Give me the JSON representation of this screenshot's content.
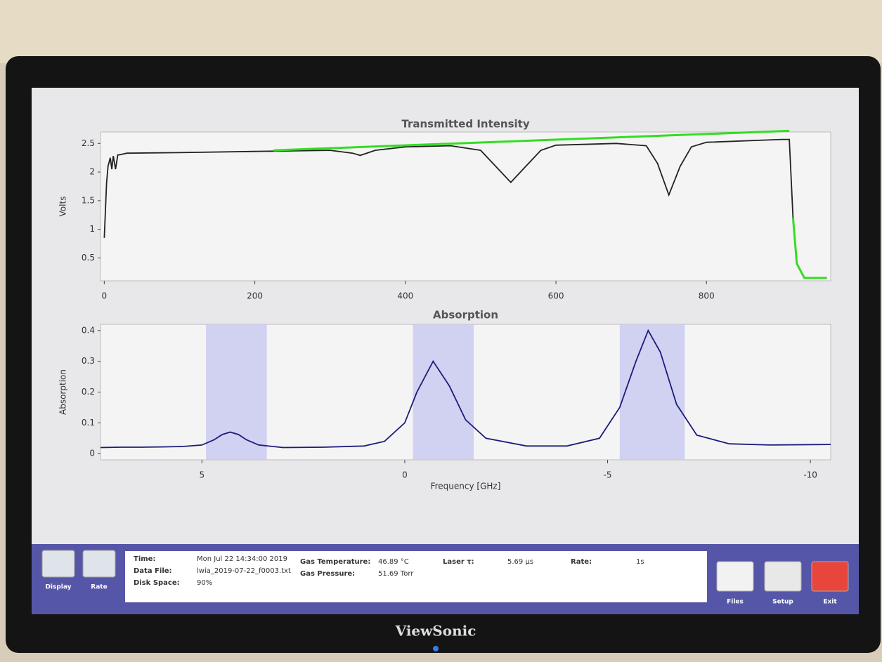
{
  "chart_data": [
    {
      "type": "line",
      "title": "Transmitted Intensity",
      "y_label": "Volts",
      "xlim": [
        -5,
        965
      ],
      "xticks": [
        0,
        200,
        400,
        600,
        800
      ],
      "ylim": [
        0.1,
        2.7
      ],
      "yticks": [
        0.5,
        1,
        1.5,
        2,
        2.5
      ],
      "series": [
        {
          "color": "#222222",
          "x": [
            0,
            3,
            5,
            8,
            10,
            12,
            15,
            18,
            20,
            30,
            100,
            200,
            300,
            330,
            340,
            360,
            400,
            460,
            500,
            520,
            540,
            560,
            580,
            600,
            680,
            720,
            735,
            750,
            765,
            780,
            800,
            900,
            910,
            915,
            920,
            930,
            960
          ],
          "values": [
            0.85,
            1.8,
            2.1,
            2.25,
            2.05,
            2.28,
            2.05,
            2.3,
            2.3,
            2.33,
            2.34,
            2.36,
            2.38,
            2.33,
            2.29,
            2.38,
            2.44,
            2.46,
            2.38,
            2.1,
            1.82,
            2.1,
            2.38,
            2.47,
            2.5,
            2.46,
            2.15,
            1.6,
            2.1,
            2.44,
            2.52,
            2.57,
            2.57,
            1.2,
            0.4,
            0.15,
            0.15
          ]
        },
        {
          "color": "#33dd22",
          "x": [
            225,
            910,
            912,
            915,
            920,
            930,
            960
          ],
          "values": [
            2.38,
            2.72,
            null,
            1.2,
            0.4,
            0.15,
            0.15
          ]
        }
      ]
    },
    {
      "type": "line",
      "title": "Absorption",
      "y_label": "Absorption",
      "x_label": "Frequency [GHz]",
      "xlim": [
        7.5,
        -10.5
      ],
      "xticks": [
        5,
        0,
        -5,
        -10
      ],
      "ylim": [
        -0.02,
        0.42
      ],
      "yticks": [
        0,
        0.1,
        0.2,
        0.3,
        0.4
      ],
      "shaded_regions": [
        [
          4.9,
          3.4
        ],
        [
          -0.2,
          -1.7
        ],
        [
          -5.3,
          -6.9
        ]
      ],
      "region_color": "#c8c8f0",
      "series": [
        {
          "color": "#1c1c7a",
          "x": [
            7.5,
            7,
            6.5,
            6,
            5.5,
            5,
            4.7,
            4.5,
            4.3,
            4.1,
            3.9,
            3.6,
            3,
            2,
            1,
            0.5,
            0,
            -0.3,
            -0.7,
            -1.1,
            -1.5,
            -2,
            -3,
            -4,
            -4.8,
            -5.3,
            -5.7,
            -6,
            -6.3,
            -6.7,
            -7.2,
            -8,
            -9,
            -10.5
          ],
          "values": [
            0.02,
            0.021,
            0.021,
            0.022,
            0.023,
            0.028,
            0.045,
            0.062,
            0.07,
            0.062,
            0.045,
            0.028,
            0.02,
            0.021,
            0.025,
            0.04,
            0.1,
            0.2,
            0.3,
            0.22,
            0.11,
            0.05,
            0.025,
            0.025,
            0.05,
            0.15,
            0.3,
            0.4,
            0.33,
            0.16,
            0.06,
            0.032,
            0.028,
            0.03
          ]
        }
      ]
    }
  ],
  "ui": {
    "buttons_left": [
      "Display",
      "Rate"
    ],
    "buttons_right": [
      "Files",
      "Setup",
      "Exit"
    ],
    "status": [
      [
        "Time:",
        "Mon Jul 22 14:34:00 2019"
      ],
      [
        "Data File:",
        "lwia_2019-07-22_f0003.txt"
      ],
      [
        "Disk Space:",
        "90%"
      ],
      [
        "Gas Temperature:",
        "46.89 °C"
      ],
      [
        "Gas Pressure:",
        "51.69 Torr"
      ],
      [
        "Laser τ:",
        "5.69 µs"
      ],
      [
        "Rate:",
        "1s"
      ]
    ],
    "brand": "ViewSonic"
  }
}
